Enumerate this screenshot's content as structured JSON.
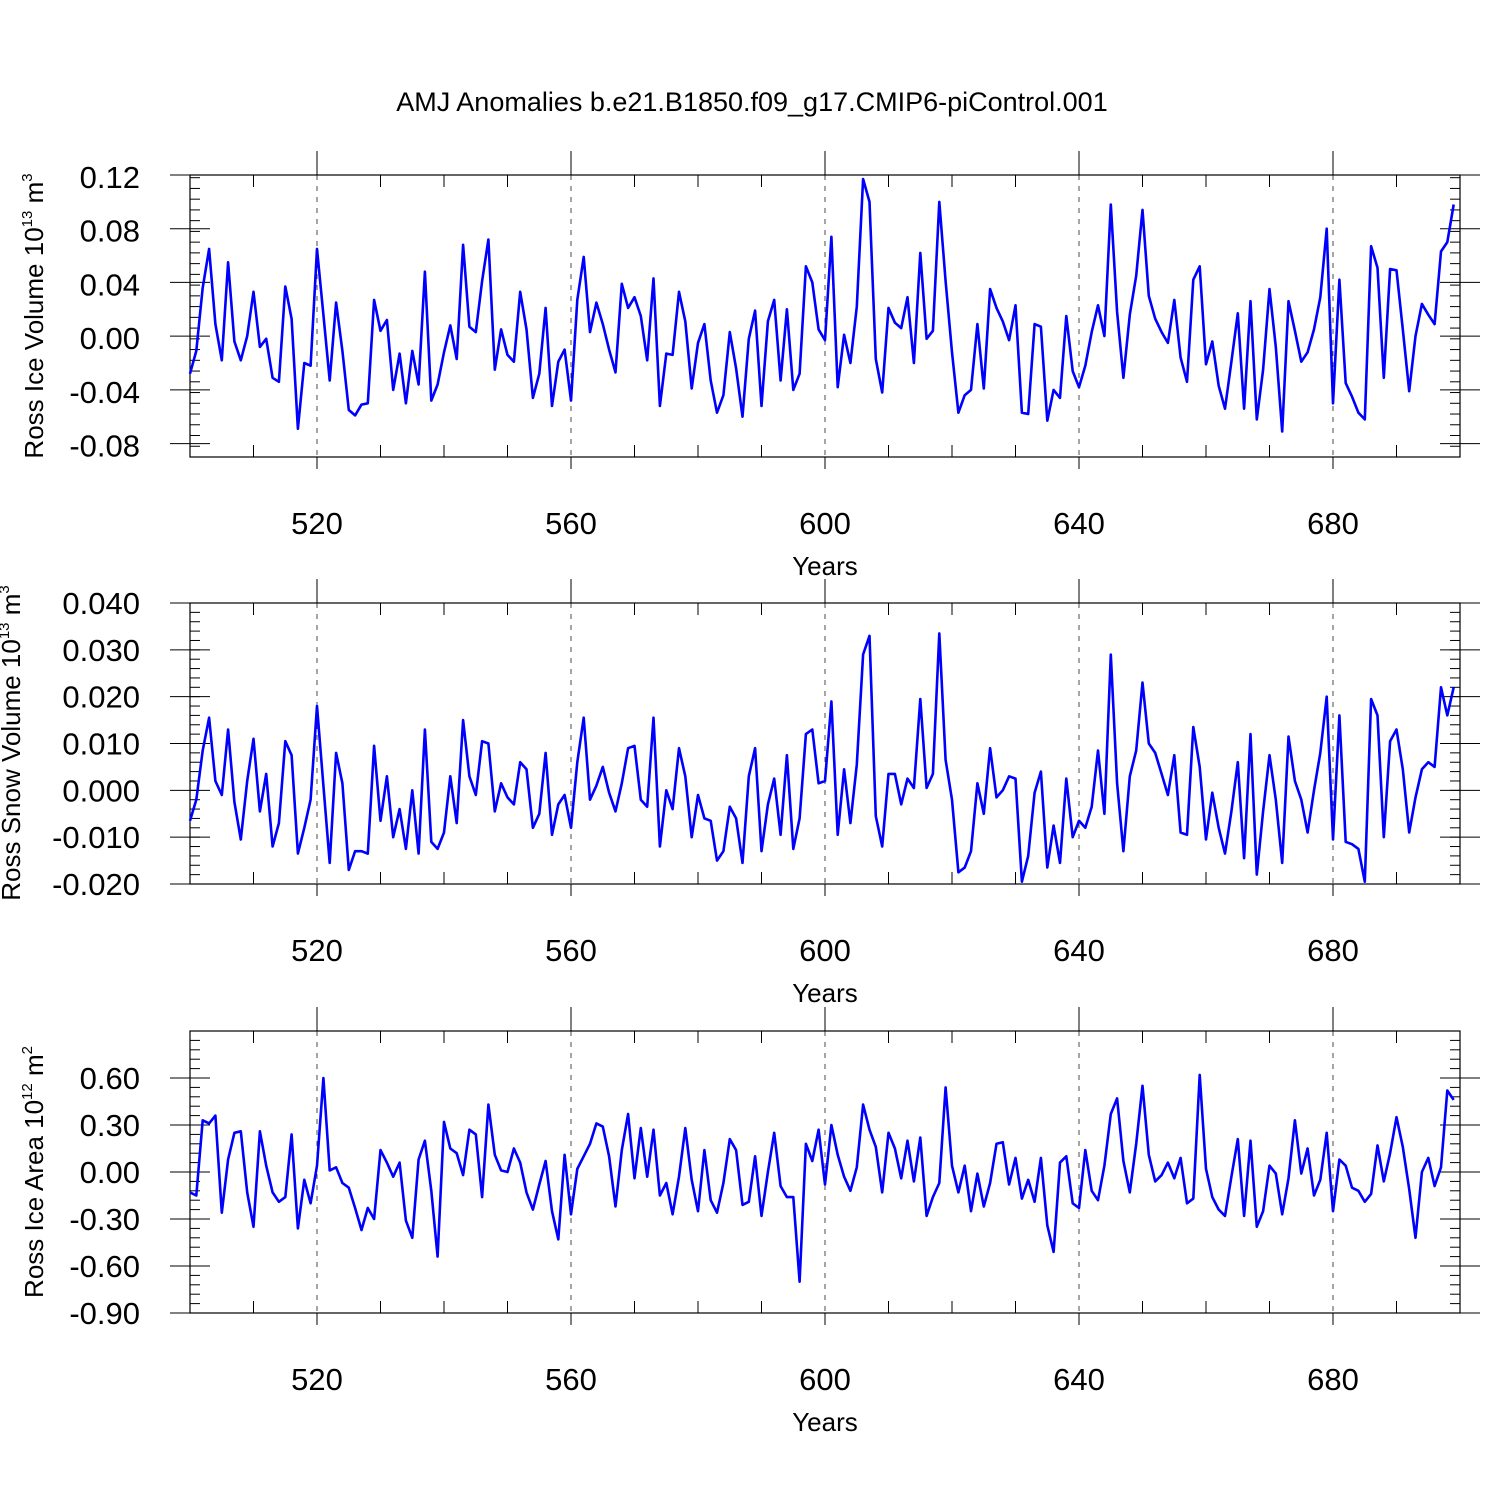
{
  "title": "AMJ Anomalies b.e21.B1850.f09_g17.CMIP6-piControl.001",
  "colors": {
    "series": "#0000ff",
    "axis": "#000000",
    "grid": "#000000"
  },
  "chart_data": [
    {
      "type": "line",
      "name": "ross-ice-volume",
      "ylabel_main": "Ross Ice Volume 10",
      "ylabel_exp": "13",
      "ylabel_unit": " m",
      "ylabel_unit_exp": "3",
      "xlabel": "Years",
      "xlim": [
        500,
        700
      ],
      "ylim": [
        -0.09,
        0.12
      ],
      "xticks": [
        520,
        560,
        600,
        640,
        680
      ],
      "xtick_labels": [
        "520",
        "560",
        "600",
        "640",
        "680"
      ],
      "yticks": [
        0.12,
        0.08,
        0.04,
        0.0,
        -0.04,
        -0.08
      ],
      "ytick_labels": [
        "0.12",
        "0.08",
        "0.04",
        "0.00",
        "-0.04",
        "-0.08"
      ],
      "x_start": 500,
      "values": [
        -0.028,
        -0.011,
        0.036,
        0.065,
        0.009,
        -0.018,
        0.055,
        -0.004,
        -0.018,
        0.0,
        0.033,
        -0.008,
        -0.002,
        -0.031,
        -0.034,
        0.037,
        0.013,
        -0.069,
        -0.02,
        -0.022,
        0.065,
        0.016,
        -0.033,
        0.025,
        -0.011,
        -0.055,
        -0.059,
        -0.051,
        -0.05,
        0.027,
        0.004,
        0.012,
        -0.04,
        -0.013,
        -0.05,
        -0.011,
        -0.036,
        0.048,
        -0.048,
        -0.036,
        -0.012,
        0.008,
        -0.017,
        0.068,
        0.007,
        0.003,
        0.041,
        0.072,
        -0.025,
        0.005,
        -0.014,
        -0.019,
        0.033,
        0.005,
        -0.046,
        -0.028,
        0.021,
        -0.052,
        -0.019,
        -0.01,
        -0.048,
        0.027,
        0.059,
        0.003,
        0.025,
        0.009,
        -0.01,
        -0.027,
        0.039,
        0.021,
        0.029,
        0.015,
        -0.018,
        0.043,
        -0.052,
        -0.013,
        -0.014,
        0.033,
        0.011,
        -0.039,
        -0.005,
        0.009,
        -0.033,
        -0.057,
        -0.044,
        0.003,
        -0.024,
        -0.06,
        -0.002,
        0.019,
        -0.052,
        0.011,
        0.027,
        -0.033,
        0.02,
        -0.04,
        -0.028,
        0.052,
        0.04,
        0.005,
        -0.003,
        0.074,
        -0.038,
        0.001,
        -0.02,
        0.022,
        0.117,
        0.1,
        -0.017,
        -0.042,
        0.021,
        0.01,
        0.006,
        0.029,
        -0.02,
        0.062,
        -0.002,
        0.004,
        0.1,
        0.041,
        -0.012,
        -0.057,
        -0.044,
        -0.04,
        0.009,
        -0.039,
        0.035,
        0.021,
        0.011,
        -0.003,
        0.023,
        -0.057,
        -0.058,
        0.009,
        0.007,
        -0.063,
        -0.04,
        -0.046,
        0.015,
        -0.026,
        -0.038,
        -0.022,
        0.003,
        0.023,
        0.0,
        0.098,
        0.018,
        -0.031,
        0.016,
        0.045,
        0.094,
        0.03,
        0.013,
        0.003,
        -0.005,
        0.027,
        -0.016,
        -0.034,
        0.042,
        0.052,
        -0.021,
        -0.004,
        -0.037,
        -0.054,
        -0.019,
        0.017,
        -0.054,
        0.026,
        -0.062,
        -0.025,
        0.035,
        -0.008,
        -0.071,
        0.026,
        0.004,
        -0.019,
        -0.012,
        0.005,
        0.029,
        0.08,
        -0.05,
        0.042,
        -0.035,
        -0.045,
        -0.057,
        -0.062,
        0.067,
        0.051,
        -0.031,
        0.05,
        0.049,
        0.005,
        -0.041,
        0.0,
        0.024,
        0.016,
        0.009,
        0.063,
        0.07,
        0.098
      ]
    },
    {
      "type": "line",
      "name": "ross-snow-volume",
      "ylabel_main": "Ross Snow Volume 10",
      "ylabel_exp": "13",
      "ylabel_unit": " m",
      "ylabel_unit_exp": "3",
      "xlabel": "Years",
      "xlim": [
        500,
        700
      ],
      "ylim": [
        -0.02,
        0.04
      ],
      "xticks": [
        520,
        560,
        600,
        640,
        680
      ],
      "xtick_labels": [
        "520",
        "560",
        "600",
        "640",
        "680"
      ],
      "yticks": [
        0.04,
        0.03,
        0.02,
        0.01,
        0.0,
        -0.01,
        -0.02
      ],
      "ytick_labels": [
        "0.040",
        "0.030",
        "0.020",
        "0.010",
        "0.000",
        "-0.010",
        "-0.020"
      ],
      "x_start": 500,
      "values": [
        -0.0065,
        -0.002,
        0.0085,
        0.0155,
        0.002,
        -0.001,
        0.013,
        -0.0025,
        -0.0105,
        0.002,
        0.011,
        -0.0045,
        0.0035,
        -0.012,
        -0.007,
        0.0105,
        0.0075,
        -0.0135,
        -0.008,
        -0.002,
        0.018,
        0.001,
        -0.0155,
        0.008,
        0.0015,
        -0.017,
        -0.013,
        -0.013,
        -0.0135,
        0.0095,
        -0.0065,
        0.003,
        -0.01,
        -0.004,
        -0.0125,
        0.0,
        -0.0135,
        0.013,
        -0.011,
        -0.0125,
        -0.009,
        0.003,
        -0.007,
        0.015,
        0.003,
        -0.001,
        0.0105,
        0.01,
        -0.0045,
        0.0015,
        -0.0015,
        -0.003,
        0.006,
        0.0045,
        -0.008,
        -0.005,
        0.008,
        -0.0095,
        -0.003,
        -0.001,
        -0.008,
        0.006,
        0.0155,
        -0.002,
        0.001,
        0.005,
        -0.0005,
        -0.0045,
        0.0015,
        0.009,
        0.0095,
        -0.002,
        -0.0035,
        0.0155,
        -0.012,
        0.0,
        -0.004,
        0.009,
        0.003,
        -0.01,
        -0.001,
        -0.006,
        -0.0065,
        -0.015,
        -0.013,
        -0.0035,
        -0.006,
        -0.0155,
        0.003,
        0.009,
        -0.013,
        -0.003,
        0.0025,
        -0.0095,
        0.0075,
        -0.0125,
        -0.006,
        0.012,
        0.013,
        0.0015,
        0.002,
        0.019,
        -0.0095,
        0.0045,
        -0.007,
        0.0055,
        0.029,
        0.033,
        -0.0055,
        -0.012,
        0.0035,
        0.0035,
        -0.003,
        0.0025,
        0.0005,
        0.0195,
        0.0005,
        0.0035,
        0.0335,
        0.0065,
        -0.002,
        -0.0175,
        -0.0165,
        -0.013,
        0.0015,
        -0.005,
        0.009,
        -0.0015,
        0.0,
        0.003,
        0.0025,
        -0.0195,
        -0.014,
        -0.0005,
        0.004,
        -0.0165,
        -0.0075,
        -0.0155,
        0.0025,
        -0.01,
        -0.0065,
        -0.008,
        -0.0035,
        0.0085,
        -0.005,
        0.029,
        0.0015,
        -0.013,
        0.003,
        0.0085,
        0.023,
        0.01,
        0.008,
        0.0035,
        -0.001,
        0.0075,
        -0.009,
        -0.0095,
        0.0135,
        0.005,
        -0.0105,
        -0.0005,
        -0.008,
        -0.0135,
        -0.0045,
        0.006,
        -0.0145,
        0.012,
        -0.018,
        -0.0045,
        0.0075,
        -0.002,
        -0.0155,
        0.0115,
        0.002,
        -0.002,
        -0.009,
        0.0,
        0.008,
        0.02,
        -0.0105,
        0.016,
        -0.011,
        -0.0115,
        -0.0125,
        -0.0195,
        0.0195,
        0.016,
        -0.01,
        0.0105,
        0.013,
        0.0045,
        -0.009,
        -0.0015,
        0.0045,
        0.006,
        0.005,
        0.022,
        0.016,
        0.022
      ]
    },
    {
      "type": "line",
      "name": "ross-ice-area",
      "ylabel_main": "Ross Ice Area 10",
      "ylabel_exp": "12",
      "ylabel_unit": " m",
      "ylabel_unit_exp": "2",
      "xlabel": "Years",
      "xlim": [
        500,
        700
      ],
      "ylim": [
        -0.9,
        0.9
      ],
      "xticks": [
        520,
        560,
        600,
        640,
        680
      ],
      "xtick_labels": [
        "520",
        "560",
        "600",
        "640",
        "680"
      ],
      "yticks": [
        0.6,
        0.3,
        0.0,
        -0.3,
        -0.6,
        -0.9
      ],
      "ytick_labels": [
        "0.60",
        "0.30",
        "0.00",
        "-0.30",
        "-0.60",
        "-0.90"
      ],
      "x_start": 500,
      "values": [
        -0.13,
        -0.15,
        0.33,
        0.31,
        0.36,
        -0.26,
        0.08,
        0.25,
        0.26,
        -0.13,
        -0.35,
        0.26,
        0.04,
        -0.13,
        -0.19,
        -0.16,
        0.24,
        -0.36,
        -0.05,
        -0.2,
        0.04,
        0.6,
        0.01,
        0.03,
        -0.07,
        -0.1,
        -0.23,
        -0.37,
        -0.23,
        -0.3,
        0.14,
        0.06,
        -0.03,
        0.06,
        -0.31,
        -0.42,
        0.08,
        0.2,
        -0.12,
        -0.54,
        0.32,
        0.15,
        0.12,
        -0.02,
        0.27,
        0.24,
        -0.16,
        0.43,
        0.11,
        0.01,
        0.0,
        0.15,
        0.06,
        -0.13,
        -0.24,
        -0.08,
        0.07,
        -0.25,
        -0.43,
        0.11,
        -0.27,
        0.02,
        0.1,
        0.18,
        0.31,
        0.29,
        0.1,
        -0.22,
        0.14,
        0.37,
        -0.04,
        0.28,
        -0.03,
        0.27,
        -0.15,
        -0.07,
        -0.27,
        -0.03,
        0.28,
        -0.05,
        -0.25,
        0.14,
        -0.18,
        -0.26,
        -0.07,
        0.21,
        0.14,
        -0.21,
        -0.19,
        0.1,
        -0.28,
        0.0,
        0.25,
        -0.09,
        -0.16,
        -0.16,
        -0.7,
        0.18,
        0.07,
        0.27,
        -0.08,
        0.3,
        0.11,
        -0.03,
        -0.12,
        0.03,
        0.43,
        0.27,
        0.16,
        -0.13,
        0.25,
        0.15,
        -0.04,
        0.2,
        -0.06,
        0.22,
        -0.28,
        -0.16,
        -0.07,
        0.54,
        0.04,
        -0.13,
        0.04,
        -0.25,
        -0.01,
        -0.22,
        -0.07,
        0.18,
        0.19,
        -0.08,
        0.09,
        -0.17,
        -0.05,
        -0.19,
        0.09,
        -0.34,
        -0.51,
        0.06,
        0.1,
        -0.2,
        -0.23,
        0.14,
        -0.12,
        -0.18,
        0.04,
        0.37,
        0.47,
        0.07,
        -0.13,
        0.18,
        0.55,
        0.11,
        -0.06,
        -0.02,
        0.06,
        -0.04,
        0.09,
        -0.2,
        -0.17,
        0.62,
        0.02,
        -0.16,
        -0.24,
        -0.28,
        -0.03,
        0.21,
        -0.28,
        0.2,
        -0.35,
        -0.25,
        0.04,
        -0.01,
        -0.27,
        -0.04,
        0.33,
        -0.01,
        0.15,
        -0.15,
        -0.05,
        0.25,
        -0.25,
        0.08,
        0.04,
        -0.1,
        -0.12,
        -0.19,
        -0.14,
        0.17,
        -0.06,
        0.12,
        0.35,
        0.16,
        -0.11,
        -0.42,
        0.0,
        0.09,
        -0.09,
        0.03,
        0.52,
        0.46
      ]
    }
  ]
}
